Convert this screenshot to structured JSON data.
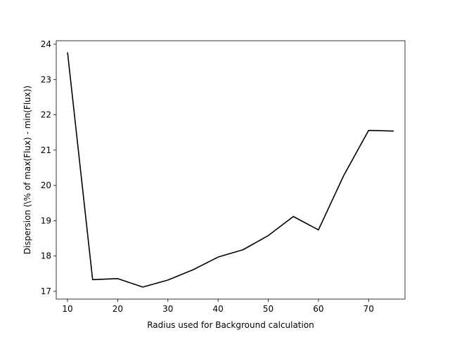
{
  "chart_data": {
    "type": "line",
    "title": "",
    "xlabel": "Radius used for Background calculation",
    "ylabel": "Dispersion (\\% of max(Flux) - min(Flux))",
    "xlim": [
      7.75,
      77.25
    ],
    "ylim": [
      16.78,
      24.1
    ],
    "grid": false,
    "legend": "none",
    "x_ticks": [
      10,
      20,
      30,
      40,
      50,
      60,
      70
    ],
    "y_ticks": [
      17,
      18,
      19,
      20,
      21,
      22,
      23,
      24
    ],
    "series": [
      {
        "color": "#000000",
        "x": [
          10,
          15,
          20,
          25,
          30,
          35,
          40,
          45,
          50,
          55,
          60,
          65,
          70,
          75
        ],
        "y": [
          23.77,
          17.33,
          17.36,
          17.12,
          17.32,
          17.61,
          17.97,
          18.18,
          18.58,
          19.12,
          18.74,
          20.27,
          21.56,
          21.54
        ]
      }
    ]
  }
}
